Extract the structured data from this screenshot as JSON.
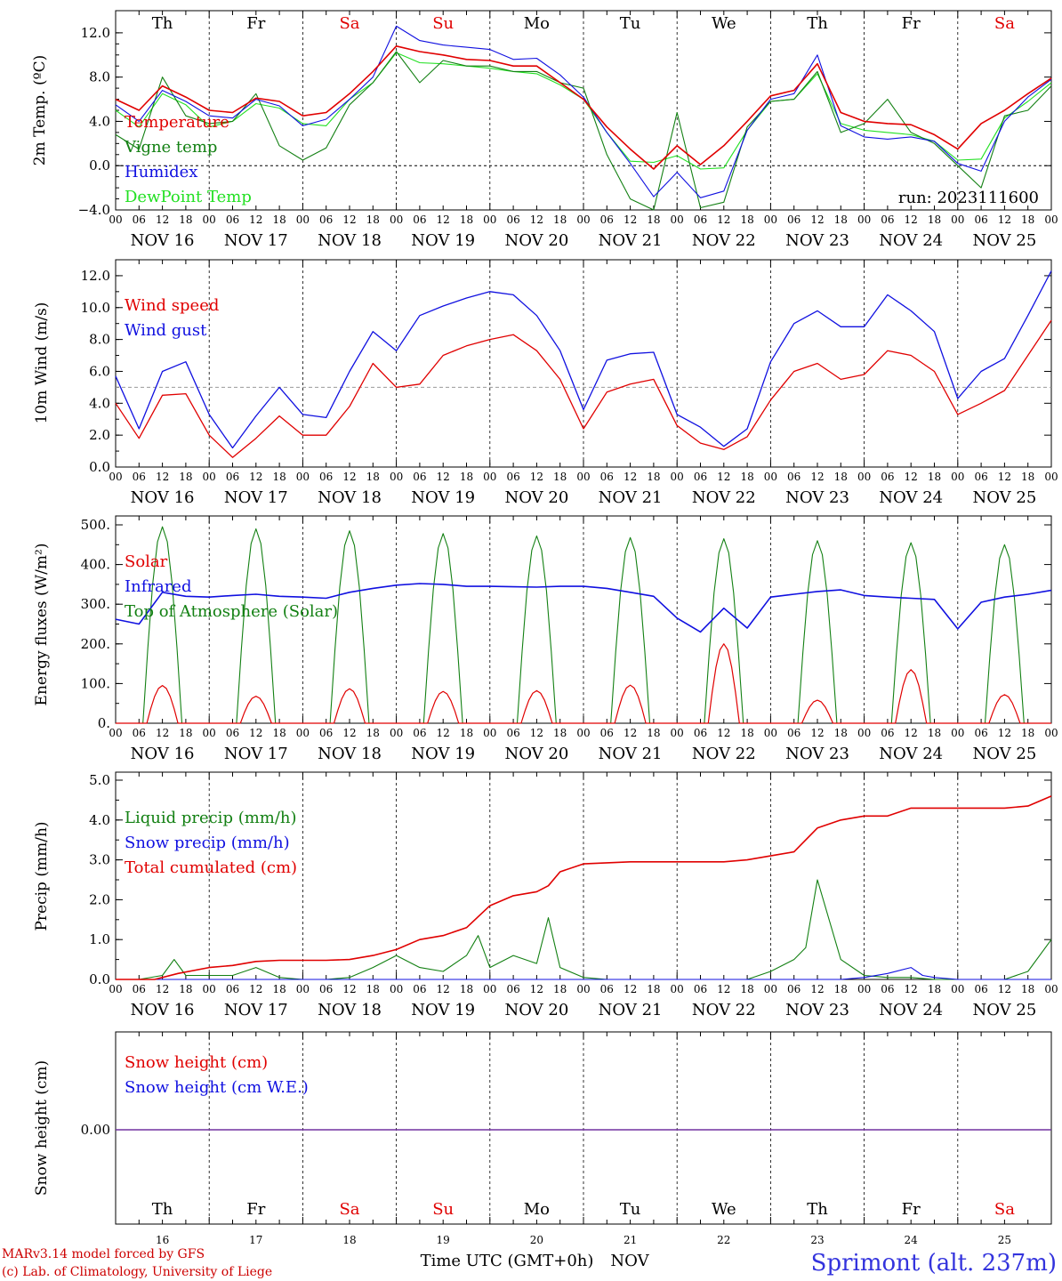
{
  "days": {
    "short": [
      "Th",
      "Fr",
      "Sa",
      "Su",
      "Mo",
      "Tu",
      "We",
      "Th",
      "Fr",
      "Sa"
    ],
    "colors": [
      "#000000",
      "#000000",
      "#e00000",
      "#e00000",
      "#000000",
      "#000000",
      "#000000",
      "#000000",
      "#000000",
      "#e00000"
    ],
    "dates": [
      "NOV 16",
      "NOV 17",
      "NOV 18",
      "NOV 19",
      "NOV 20",
      "NOV 21",
      "NOV 22",
      "NOV 23",
      "NOV 24",
      "NOV 25"
    ],
    "numbers": [
      "16",
      "17",
      "18",
      "19",
      "20",
      "21",
      "22",
      "23",
      "24",
      "25"
    ]
  },
  "hour_ticks": [
    "00",
    "06",
    "12",
    "18"
  ],
  "run_label": "run: 2023111600",
  "footer": {
    "model": "MARv3.14 model forced by GFS",
    "lab": "(c) Lab. of Climatology, University of Liege",
    "time_label": "Time UTC (GMT+0h)",
    "month": "NOV",
    "station": "Sprimont (alt. 237m)"
  },
  "colors": {
    "red": "#e00000",
    "green": "#138013",
    "blue": "#1010e0",
    "lightgreen": "#22e022",
    "purple": "#7030a0"
  },
  "chart_data": [
    {
      "type": "line",
      "ylabel": "2m Temp. (ºC)",
      "ylim": [
        -4,
        14
      ],
      "yticks": [
        "−4.0",
        "0.0",
        "4.0",
        "8.0",
        "12.0"
      ],
      "x_unit": "hours since NOV 16 00 UTC",
      "series": [
        {
          "name": "Temperature",
          "color": "red",
          "x": [
            0,
            6,
            12,
            18,
            24,
            30,
            36,
            42,
            48,
            54,
            60,
            66,
            72,
            78,
            84,
            90,
            96,
            102,
            108,
            114,
            120,
            126,
            132,
            138,
            144,
            150,
            156,
            162,
            168,
            174,
            180,
            186,
            192,
            198,
            204,
            210,
            216,
            222,
            228,
            234,
            240
          ],
          "y": [
            6.0,
            5.0,
            7.2,
            6.2,
            5.0,
            4.8,
            6.1,
            5.8,
            4.5,
            4.8,
            6.5,
            8.5,
            10.8,
            10.3,
            10.0,
            9.6,
            9.5,
            9.0,
            9.0,
            7.5,
            6.0,
            3.5,
            1.5,
            -0.3,
            1.8,
            0.1,
            1.8,
            4.0,
            6.3,
            6.8,
            9.2,
            4.8,
            4.0,
            3.8,
            3.7,
            2.8,
            1.5,
            3.8,
            5.0,
            6.5,
            7.9
          ]
        },
        {
          "name": "Vigne temp",
          "color": "green",
          "x": [
            0,
            6,
            12,
            18,
            24,
            30,
            36,
            42,
            48,
            54,
            60,
            66,
            72,
            78,
            84,
            90,
            96,
            102,
            108,
            114,
            120,
            126,
            132,
            138,
            144,
            150,
            156,
            162,
            168,
            174,
            180,
            186,
            192,
            198,
            204,
            210,
            216,
            222,
            228,
            234,
            240
          ],
          "y": [
            2.8,
            1.5,
            8.0,
            4.5,
            3.8,
            4.0,
            6.5,
            1.8,
            0.5,
            1.6,
            5.5,
            7.5,
            10.3,
            7.5,
            9.5,
            9.0,
            9.0,
            8.5,
            8.5,
            7.5,
            7.0,
            1.0,
            -3.0,
            -4.0,
            4.8,
            -3.8,
            -3.3,
            3.5,
            5.8,
            6.0,
            8.5,
            3.0,
            3.8,
            6.0,
            3.0,
            2.0,
            0.0,
            -2.0,
            4.5,
            5.0,
            7.2
          ]
        },
        {
          "name": "Humidex",
          "color": "blue",
          "x": [
            0,
            6,
            12,
            18,
            24,
            30,
            36,
            42,
            48,
            54,
            60,
            66,
            72,
            78,
            84,
            90,
            96,
            102,
            108,
            114,
            120,
            126,
            132,
            138,
            144,
            150,
            156,
            162,
            168,
            174,
            180,
            186,
            192,
            198,
            204,
            210,
            216,
            222,
            228,
            234,
            240
          ],
          "y": [
            5.5,
            4.0,
            6.8,
            5.8,
            4.5,
            4.3,
            6.0,
            5.4,
            3.6,
            4.2,
            6.0,
            8.0,
            12.6,
            11.3,
            10.9,
            10.7,
            10.5,
            9.6,
            9.7,
            8.2,
            6.2,
            3.0,
            0.2,
            -2.8,
            -0.6,
            -2.9,
            -2.3,
            3.2,
            6.0,
            6.5,
            10.0,
            3.6,
            2.6,
            2.4,
            2.6,
            2.2,
            0.2,
            -0.5,
            4.0,
            6.2,
            7.8
          ]
        },
        {
          "name": "DewPoint Temp",
          "color": "lightgreen",
          "x": [
            0,
            6,
            12,
            18,
            24,
            30,
            36,
            42,
            48,
            54,
            60,
            66,
            72,
            78,
            84,
            90,
            96,
            102,
            108,
            114,
            120,
            126,
            132,
            138,
            144,
            150,
            156,
            162,
            168,
            174,
            180,
            186,
            192,
            198,
            204,
            210,
            216,
            222,
            228,
            234,
            240
          ],
          "y": [
            5.0,
            3.5,
            6.5,
            5.5,
            3.5,
            4.0,
            5.6,
            5.2,
            3.8,
            3.6,
            6.0,
            7.5,
            10.2,
            9.3,
            9.2,
            9.0,
            8.8,
            8.5,
            8.3,
            7.3,
            6.0,
            3.0,
            0.4,
            0.3,
            0.9,
            -0.3,
            -0.2,
            3.2,
            5.8,
            6.0,
            8.3,
            3.8,
            3.2,
            3.0,
            2.8,
            2.2,
            0.5,
            0.6,
            4.3,
            5.8,
            7.5
          ]
        }
      ]
    },
    {
      "type": "line",
      "ylabel": "10m Wind (m/s)",
      "ylim": [
        0,
        13
      ],
      "yticks": [
        "0.0",
        "2.0",
        "4.0",
        "6.0",
        "8.0",
        "10.0",
        "12.0"
      ],
      "series": [
        {
          "name": "Wind speed",
          "color": "red",
          "x": [
            0,
            6,
            12,
            18,
            24,
            30,
            36,
            42,
            48,
            54,
            60,
            66,
            72,
            78,
            84,
            90,
            96,
            102,
            108,
            114,
            120,
            126,
            132,
            138,
            144,
            150,
            156,
            162,
            168,
            174,
            180,
            186,
            192,
            198,
            204,
            210,
            216,
            222,
            228,
            234,
            240
          ],
          "y": [
            4.0,
            1.8,
            4.5,
            4.6,
            2.0,
            0.6,
            1.8,
            3.2,
            2.0,
            2.0,
            3.8,
            6.5,
            5.0,
            5.2,
            7.0,
            7.6,
            8.0,
            8.3,
            7.3,
            5.5,
            2.4,
            4.7,
            5.2,
            5.5,
            2.6,
            1.5,
            1.1,
            1.9,
            4.2,
            6.0,
            6.5,
            5.5,
            5.8,
            7.3,
            7.0,
            6.0,
            3.3,
            4.0,
            4.8,
            7.0,
            9.2
          ]
        },
        {
          "name": "Wind gust",
          "color": "blue",
          "x": [
            0,
            6,
            12,
            18,
            24,
            30,
            36,
            42,
            48,
            54,
            60,
            66,
            72,
            78,
            84,
            90,
            96,
            102,
            108,
            114,
            120,
            126,
            132,
            138,
            144,
            150,
            156,
            162,
            168,
            174,
            180,
            186,
            192,
            198,
            204,
            210,
            216,
            222,
            228,
            234,
            240
          ],
          "y": [
            5.7,
            2.4,
            6.0,
            6.6,
            3.3,
            1.2,
            3.2,
            5.0,
            3.3,
            3.1,
            6.0,
            8.5,
            7.3,
            9.5,
            10.1,
            10.6,
            11.0,
            10.8,
            9.5,
            7.3,
            3.6,
            6.7,
            7.1,
            7.2,
            3.3,
            2.5,
            1.3,
            2.4,
            6.6,
            9.0,
            9.8,
            8.8,
            8.8,
            10.8,
            9.8,
            8.5,
            4.3,
            6.0,
            6.8,
            9.5,
            12.3
          ]
        }
      ],
      "reference_line": 5
    },
    {
      "type": "line",
      "ylabel": "Energy fluxes (W/m²)",
      "ylim": [
        0,
        500
      ],
      "yticks": [
        "0.",
        "100.",
        "200.",
        "300.",
        "400.",
        "500."
      ],
      "series": [
        {
          "name": "Solar",
          "color": "red",
          "peaks": [
            [
              12,
              95
            ],
            [
              36,
              68
            ],
            [
              60,
              87
            ],
            [
              84,
              80
            ],
            [
              108,
              82
            ],
            [
              132,
              96
            ],
            [
              156,
              200
            ],
            [
              180,
              58
            ],
            [
              204,
              135
            ],
            [
              228,
              72
            ]
          ]
        },
        {
          "name": "Infrared",
          "color": "blue",
          "x": [
            0,
            6,
            12,
            18,
            24,
            30,
            36,
            42,
            48,
            54,
            60,
            66,
            72,
            78,
            84,
            90,
            96,
            102,
            108,
            114,
            120,
            126,
            132,
            138,
            144,
            150,
            156,
            162,
            168,
            174,
            180,
            186,
            192,
            198,
            204,
            210,
            216,
            222,
            228,
            234,
            240
          ],
          "y": [
            262,
            250,
            330,
            320,
            318,
            322,
            325,
            320,
            318,
            315,
            330,
            340,
            348,
            352,
            350,
            345,
            345,
            344,
            343,
            345,
            345,
            340,
            330,
            320,
            265,
            230,
            290,
            240,
            318,
            325,
            332,
            336,
            322,
            318,
            315,
            312,
            238,
            305,
            318,
            325,
            335
          ]
        },
        {
          "name": "Top of Atmosphere (Solar)",
          "color": "green",
          "peaks": [
            [
              12,
              495
            ],
            [
              36,
              490
            ],
            [
              60,
              485
            ],
            [
              84,
              478
            ],
            [
              108,
              472
            ],
            [
              132,
              468
            ],
            [
              156,
              465
            ],
            [
              180,
              460
            ],
            [
              204,
              455
            ],
            [
              228,
              450
            ]
          ]
        }
      ]
    },
    {
      "type": "line",
      "ylabel": "Precip (mm/h)",
      "ylim": [
        0,
        5
      ],
      "yticks": [
        "0.0",
        "1.0",
        "2.0",
        "3.0",
        "4.0",
        "5.0"
      ],
      "series": [
        {
          "name": "Liquid precip (mm/h)",
          "color": "green",
          "x": [
            0,
            6,
            12,
            15,
            18,
            24,
            30,
            36,
            42,
            48,
            54,
            60,
            66,
            72,
            78,
            84,
            90,
            93,
            96,
            102,
            108,
            111,
            114,
            120,
            126,
            132,
            138,
            144,
            150,
            156,
            162,
            168,
            174,
            177,
            180,
            186,
            192,
            198,
            204,
            210,
            216,
            222,
            228,
            234,
            240
          ],
          "y": [
            0,
            0,
            0.1,
            0.5,
            0.1,
            0.1,
            0.1,
            0.3,
            0.05,
            0.0,
            0.0,
            0.05,
            0.3,
            0.6,
            0.3,
            0.2,
            0.6,
            1.1,
            0.3,
            0.6,
            0.4,
            1.55,
            0.3,
            0.05,
            0.0,
            0.0,
            0.0,
            0.0,
            0.0,
            0.0,
            0.0,
            0.2,
            0.5,
            0.8,
            2.5,
            0.5,
            0.1,
            0.05,
            0.05,
            0.0,
            0.0,
            0.0,
            0.0,
            0.2,
            1.0
          ]
        },
        {
          "name": "Snow precip (mm/h)",
          "color": "blue",
          "x": [
            0,
            186,
            192,
            198,
            204,
            207,
            210,
            216,
            240
          ],
          "y": [
            0,
            0,
            0.05,
            0.15,
            0.3,
            0.1,
            0.05,
            0,
            0
          ]
        },
        {
          "name": "Total cumulated (cm)",
          "color": "red",
          "x": [
            0,
            10,
            16,
            24,
            30,
            36,
            42,
            48,
            54,
            60,
            66,
            72,
            78,
            84,
            90,
            96,
            102,
            108,
            111,
            114,
            120,
            132,
            144,
            156,
            162,
            168,
            174,
            180,
            186,
            192,
            198,
            204,
            210,
            216,
            222,
            228,
            234,
            240
          ],
          "y": [
            0,
            0,
            0.15,
            0.3,
            0.35,
            0.45,
            0.48,
            0.48,
            0.48,
            0.5,
            0.6,
            0.75,
            1.0,
            1.1,
            1.3,
            1.85,
            2.1,
            2.2,
            2.35,
            2.7,
            2.9,
            2.95,
            2.95,
            2.95,
            3.0,
            3.1,
            3.2,
            3.8,
            4.0,
            4.1,
            4.1,
            4.3,
            4.3,
            4.3,
            4.3,
            4.3,
            4.35,
            4.6
          ]
        }
      ]
    },
    {
      "type": "line",
      "ylabel": "Snow height (cm)",
      "yticks": [
        "0.00"
      ],
      "series": [
        {
          "name": "Snow height (cm)",
          "color": "red",
          "x": [
            0,
            240
          ],
          "y": [
            0,
            0
          ]
        },
        {
          "name": "Snow height (cm W.E.)",
          "color": "blue",
          "x": [
            0,
            240
          ],
          "y": [
            0,
            0
          ]
        }
      ]
    }
  ]
}
